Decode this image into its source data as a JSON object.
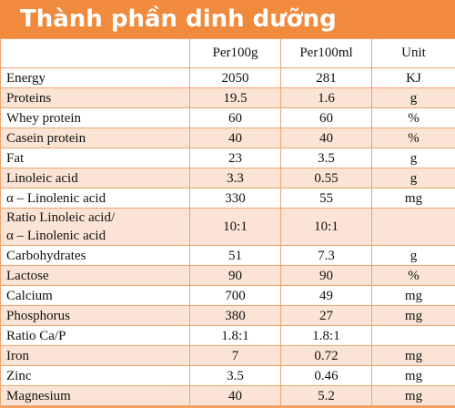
{
  "header": {
    "title": "Thành phần dinh dưỡng"
  },
  "table": {
    "columns": [
      "Per100g",
      "Per100ml",
      "Unit"
    ],
    "rows": [
      [
        "Energy",
        "2050",
        "281",
        "KJ"
      ],
      [
        "Proteins",
        "19.5",
        "1.6",
        "g"
      ],
      [
        "Whey protein",
        "60",
        "60",
        "%"
      ],
      [
        "Casein protein",
        "40",
        "40",
        "%"
      ],
      [
        "Fat",
        "23",
        "3.5",
        "g"
      ],
      [
        "Linoleic acid",
        "3.3",
        "0.55",
        "g"
      ],
      [
        "α – Linolenic acid",
        "330",
        "55",
        "mg"
      ],
      [
        "Ratio Linoleic acid/\nα – Linolenic acid",
        "10:1",
        "10:1",
        null
      ],
      [
        "Carbohydrates",
        "51",
        "7.3",
        "g"
      ],
      [
        "Lactose",
        "90",
        "90",
        "%"
      ],
      [
        "Calcium",
        "700",
        "49",
        "mg"
      ],
      [
        "Phosphorus",
        "380",
        "27",
        "mg"
      ],
      [
        "Ratio Ca/P",
        "1.8:1",
        "1.8:1",
        null
      ],
      [
        "Iron",
        "7",
        "0.72",
        "mg"
      ],
      [
        "Zinc",
        "3.5",
        "0.46",
        "mg"
      ],
      [
        "Magnesium",
        "40",
        "5.2",
        "mg"
      ]
    ]
  }
}
